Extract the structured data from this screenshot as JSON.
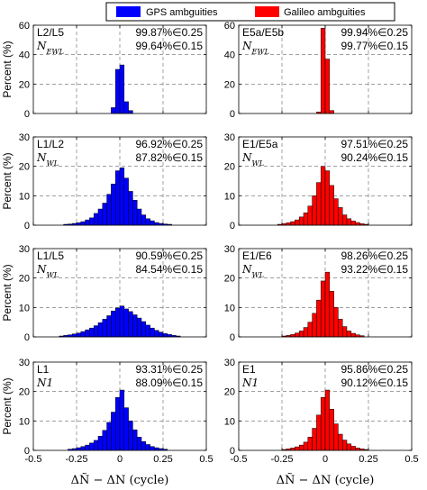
{
  "legend": {
    "items": [
      {
        "label": "GPS ambguities",
        "color": "#0000ff"
      },
      {
        "label": "Galileo ambguities",
        "color": "#ff0000"
      }
    ]
  },
  "chart_data": [
    {
      "type": "bar",
      "system": "GPS",
      "row": 0,
      "col": 0,
      "label1": "L2/L5",
      "label2": "N_EWL",
      "stat1": "99.87%∈0.25",
      "stat2": "99.64%∈0.15",
      "xlim": [
        -0.5,
        0.5
      ],
      "ylim": [
        0,
        60
      ],
      "yticks": [
        0,
        20,
        40,
        60
      ],
      "show_xticks": false,
      "ylabel": "Percent (%)",
      "bin_edges": [
        -0.5,
        0.5
      ],
      "bin_width": 0.025,
      "bins": [
        {
          "x": -0.0375,
          "y": 4
        },
        {
          "x": -0.0125,
          "y": 30
        },
        {
          "x": 0.0125,
          "y": 33
        },
        {
          "x": 0.0375,
          "y": 8
        },
        {
          "x": 0.0625,
          "y": 2
        }
      ]
    },
    {
      "type": "bar",
      "system": "Galileo",
      "row": 0,
      "col": 1,
      "label1": "E5a/E5b",
      "label2": "N_EWL",
      "stat1": "99.94%∈0.25",
      "stat2": "99.77%∈0.15",
      "xlim": [
        -0.5,
        0.5
      ],
      "ylim": [
        0,
        60
      ],
      "yticks": [
        0,
        20,
        40,
        60
      ],
      "show_xticks": false,
      "ylabel": "",
      "bin_width": 0.025,
      "bins": [
        {
          "x": -0.0375,
          "y": 1
        },
        {
          "x": -0.0125,
          "y": 58
        },
        {
          "x": 0.0125,
          "y": 37
        },
        {
          "x": 0.0375,
          "y": 2
        }
      ]
    },
    {
      "type": "bar",
      "system": "GPS",
      "row": 1,
      "col": 0,
      "label1": "L1/L2",
      "label2": "N_WL",
      "stat1": "96.92%∈0.25",
      "stat2": "87.82%∈0.15",
      "xlim": [
        -0.5,
        0.5
      ],
      "ylim": [
        0,
        30
      ],
      "yticks": [
        0,
        10,
        20,
        30
      ],
      "show_xticks": false,
      "ylabel": "Percent (%)",
      "bin_width": 0.025,
      "bins": [
        {
          "x": -0.3125,
          "y": 0.3
        },
        {
          "x": -0.2875,
          "y": 0.4
        },
        {
          "x": -0.2625,
          "y": 0.6
        },
        {
          "x": -0.2375,
          "y": 0.8
        },
        {
          "x": -0.2125,
          "y": 1.2
        },
        {
          "x": -0.1875,
          "y": 1.8
        },
        {
          "x": -0.1625,
          "y": 2.5
        },
        {
          "x": -0.1375,
          "y": 4
        },
        {
          "x": -0.1125,
          "y": 5.5
        },
        {
          "x": -0.0875,
          "y": 7.5
        },
        {
          "x": -0.0625,
          "y": 10.5
        },
        {
          "x": -0.0375,
          "y": 14
        },
        {
          "x": -0.0125,
          "y": 18.5
        },
        {
          "x": 0.0125,
          "y": 19.5
        },
        {
          "x": 0.0375,
          "y": 16
        },
        {
          "x": 0.0625,
          "y": 11.5
        },
        {
          "x": 0.0875,
          "y": 8.5
        },
        {
          "x": 0.1125,
          "y": 5.5
        },
        {
          "x": 0.1375,
          "y": 3.5
        },
        {
          "x": 0.1625,
          "y": 2.2
        },
        {
          "x": 0.1875,
          "y": 1.5
        },
        {
          "x": 0.2125,
          "y": 0.9
        },
        {
          "x": 0.2375,
          "y": 0.6
        },
        {
          "x": 0.2625,
          "y": 0.4
        },
        {
          "x": 0.2875,
          "y": 0.3
        }
      ]
    },
    {
      "type": "bar",
      "system": "Galileo",
      "row": 1,
      "col": 1,
      "label1": "E1/E5a",
      "label2": "N_WL",
      "stat1": "97.51%∈0.25",
      "stat2": "90.24%∈0.15",
      "xlim": [
        -0.5,
        0.5
      ],
      "ylim": [
        0,
        30
      ],
      "yticks": [
        0,
        10,
        20,
        30
      ],
      "show_xticks": false,
      "ylabel": "",
      "bin_width": 0.025,
      "bins": [
        {
          "x": -0.2625,
          "y": 0.3
        },
        {
          "x": -0.2375,
          "y": 0.5
        },
        {
          "x": -0.2125,
          "y": 0.8
        },
        {
          "x": -0.1875,
          "y": 1.2
        },
        {
          "x": -0.1625,
          "y": 1.8
        },
        {
          "x": -0.1375,
          "y": 2.8
        },
        {
          "x": -0.1125,
          "y": 4.2
        },
        {
          "x": -0.0875,
          "y": 6.5
        },
        {
          "x": -0.0625,
          "y": 10
        },
        {
          "x": -0.0375,
          "y": 14.5
        },
        {
          "x": -0.0125,
          "y": 20
        },
        {
          "x": 0.0125,
          "y": 18.5
        },
        {
          "x": 0.0375,
          "y": 13.5
        },
        {
          "x": 0.0625,
          "y": 9
        },
        {
          "x": 0.0875,
          "y": 6
        },
        {
          "x": 0.1125,
          "y": 3.5
        },
        {
          "x": 0.1375,
          "y": 2.2
        },
        {
          "x": 0.1625,
          "y": 1.4
        },
        {
          "x": 0.1875,
          "y": 0.9
        },
        {
          "x": 0.2125,
          "y": 0.5
        },
        {
          "x": 0.2375,
          "y": 0.3
        }
      ]
    },
    {
      "type": "bar",
      "system": "GPS",
      "row": 2,
      "col": 0,
      "label1": "L1/L5",
      "label2": "N_WL",
      "stat1": "90.59%∈0.25",
      "stat2": "84.54%∈0.15",
      "xlim": [
        -0.5,
        0.5
      ],
      "ylim": [
        0,
        30
      ],
      "yticks": [
        0,
        10,
        20,
        30
      ],
      "show_xticks": false,
      "ylabel": "Percent (%)",
      "bin_width": 0.025,
      "bins": [
        {
          "x": -0.3375,
          "y": 0.3
        },
        {
          "x": -0.3125,
          "y": 0.5
        },
        {
          "x": -0.2875,
          "y": 0.7
        },
        {
          "x": -0.2625,
          "y": 1
        },
        {
          "x": -0.2375,
          "y": 1.3
        },
        {
          "x": -0.2125,
          "y": 1.8
        },
        {
          "x": -0.1875,
          "y": 2.4
        },
        {
          "x": -0.1625,
          "y": 3
        },
        {
          "x": -0.1375,
          "y": 3.8
        },
        {
          "x": -0.1125,
          "y": 4.8
        },
        {
          "x": -0.0875,
          "y": 6
        },
        {
          "x": -0.0625,
          "y": 7.2
        },
        {
          "x": -0.0375,
          "y": 8.8
        },
        {
          "x": -0.0125,
          "y": 9.8
        },
        {
          "x": 0.0125,
          "y": 10.5
        },
        {
          "x": 0.0375,
          "y": 9.5
        },
        {
          "x": 0.0625,
          "y": 8.6
        },
        {
          "x": 0.0875,
          "y": 7.5
        },
        {
          "x": 0.1125,
          "y": 6.4
        },
        {
          "x": 0.1375,
          "y": 5.2
        },
        {
          "x": 0.1625,
          "y": 4
        },
        {
          "x": 0.1875,
          "y": 3
        },
        {
          "x": 0.2125,
          "y": 2.2
        },
        {
          "x": 0.2375,
          "y": 1.6
        },
        {
          "x": 0.2625,
          "y": 1.1
        },
        {
          "x": 0.2875,
          "y": 0.8
        },
        {
          "x": 0.3125,
          "y": 0.5
        },
        {
          "x": 0.3375,
          "y": 0.3
        }
      ]
    },
    {
      "type": "bar",
      "system": "Galileo",
      "row": 2,
      "col": 1,
      "label1": "E1/E6",
      "label2": "N_WL",
      "stat1": "98.26%∈0.25",
      "stat2": "93.22%∈0.15",
      "xlim": [
        -0.5,
        0.5
      ],
      "ylim": [
        0,
        30
      ],
      "yticks": [
        0,
        10,
        20,
        30
      ],
      "show_xticks": false,
      "ylabel": "",
      "bin_width": 0.025,
      "bins": [
        {
          "x": -0.2375,
          "y": 0.3
        },
        {
          "x": -0.2125,
          "y": 0.5
        },
        {
          "x": -0.1875,
          "y": 0.8
        },
        {
          "x": -0.1625,
          "y": 1.3
        },
        {
          "x": -0.1375,
          "y": 2
        },
        {
          "x": -0.1125,
          "y": 3.2
        },
        {
          "x": -0.0875,
          "y": 5
        },
        {
          "x": -0.0625,
          "y": 8
        },
        {
          "x": -0.0375,
          "y": 12.5
        },
        {
          "x": -0.0125,
          "y": 19
        },
        {
          "x": 0.0125,
          "y": 22
        },
        {
          "x": 0.0375,
          "y": 15.5
        },
        {
          "x": 0.0625,
          "y": 10
        },
        {
          "x": 0.0875,
          "y": 6
        },
        {
          "x": 0.1125,
          "y": 3.5
        },
        {
          "x": 0.1375,
          "y": 2
        },
        {
          "x": 0.1625,
          "y": 1.2
        },
        {
          "x": 0.1875,
          "y": 0.7
        },
        {
          "x": 0.2125,
          "y": 0.4
        }
      ]
    },
    {
      "type": "bar",
      "system": "GPS",
      "row": 3,
      "col": 0,
      "label1": "L1",
      "label2": "N1",
      "stat1": "93.31%∈0.25",
      "stat2": "88.09%∈0.15",
      "xlim": [
        -0.5,
        0.5
      ],
      "ylim": [
        0,
        30
      ],
      "yticks": [
        0,
        10,
        20,
        30
      ],
      "show_xticks": true,
      "xticks": [
        -0.5,
        -0.25,
        0,
        0.25,
        0.5
      ],
      "xticklabels": [
        "-0.5",
        "-0.25",
        "0",
        "0.25",
        "0.5"
      ],
      "ylabel": "Percent (%)",
      "bin_width": 0.025,
      "bins": [
        {
          "x": -0.2875,
          "y": 0.4
        },
        {
          "x": -0.2625,
          "y": 0.6
        },
        {
          "x": -0.2375,
          "y": 0.9
        },
        {
          "x": -0.2125,
          "y": 1.3
        },
        {
          "x": -0.1875,
          "y": 1.8
        },
        {
          "x": -0.1625,
          "y": 2.5
        },
        {
          "x": -0.1375,
          "y": 3.4
        },
        {
          "x": -0.1125,
          "y": 4.8
        },
        {
          "x": -0.0875,
          "y": 6.8
        },
        {
          "x": -0.0625,
          "y": 9.5
        },
        {
          "x": -0.0375,
          "y": 13
        },
        {
          "x": -0.0125,
          "y": 18
        },
        {
          "x": 0.0125,
          "y": 20.5
        },
        {
          "x": 0.0375,
          "y": 14.5
        },
        {
          "x": 0.0625,
          "y": 10
        },
        {
          "x": 0.0875,
          "y": 7
        },
        {
          "x": 0.1125,
          "y": 4.5
        },
        {
          "x": 0.1375,
          "y": 3
        },
        {
          "x": 0.1625,
          "y": 2
        },
        {
          "x": 0.1875,
          "y": 1.3
        },
        {
          "x": 0.2125,
          "y": 0.9
        },
        {
          "x": 0.2375,
          "y": 0.6
        },
        {
          "x": 0.2625,
          "y": 0.4
        }
      ]
    },
    {
      "type": "bar",
      "system": "Galileo",
      "row": 3,
      "col": 1,
      "label1": "E1",
      "label2": "N1",
      "stat1": "95.86%∈0.25",
      "stat2": "90.12%∈0.15",
      "xlim": [
        -0.5,
        0.5
      ],
      "ylim": [
        0,
        30
      ],
      "yticks": [
        0,
        10,
        20,
        30
      ],
      "show_xticks": true,
      "xticks": [
        -0.5,
        -0.25,
        0,
        0.25,
        0.5
      ],
      "xticklabels": [
        "-0.5",
        "-0.25",
        "0",
        "0.25",
        "0.5"
      ],
      "ylabel": "",
      "bin_width": 0.025,
      "bins": [
        {
          "x": -0.2375,
          "y": 0.3
        },
        {
          "x": -0.2125,
          "y": 0.5
        },
        {
          "x": -0.1875,
          "y": 0.8
        },
        {
          "x": -0.1625,
          "y": 1.2
        },
        {
          "x": -0.1375,
          "y": 1.8
        },
        {
          "x": -0.1125,
          "y": 2.8
        },
        {
          "x": -0.0875,
          "y": 4.5
        },
        {
          "x": -0.0625,
          "y": 7.5
        },
        {
          "x": -0.0375,
          "y": 12
        },
        {
          "x": -0.0125,
          "y": 18
        },
        {
          "x": 0.0125,
          "y": 20.5
        },
        {
          "x": 0.0375,
          "y": 14
        },
        {
          "x": 0.0625,
          "y": 9
        },
        {
          "x": 0.0875,
          "y": 5.5
        },
        {
          "x": 0.1125,
          "y": 3.5
        },
        {
          "x": 0.1375,
          "y": 2.2
        },
        {
          "x": 0.1625,
          "y": 1.4
        },
        {
          "x": 0.1875,
          "y": 0.8
        },
        {
          "x": 0.2125,
          "y": 0.5
        },
        {
          "x": 0.2375,
          "y": 0.3
        }
      ]
    }
  ],
  "xlabel": "ΔÑ − ΔN (cycle)"
}
